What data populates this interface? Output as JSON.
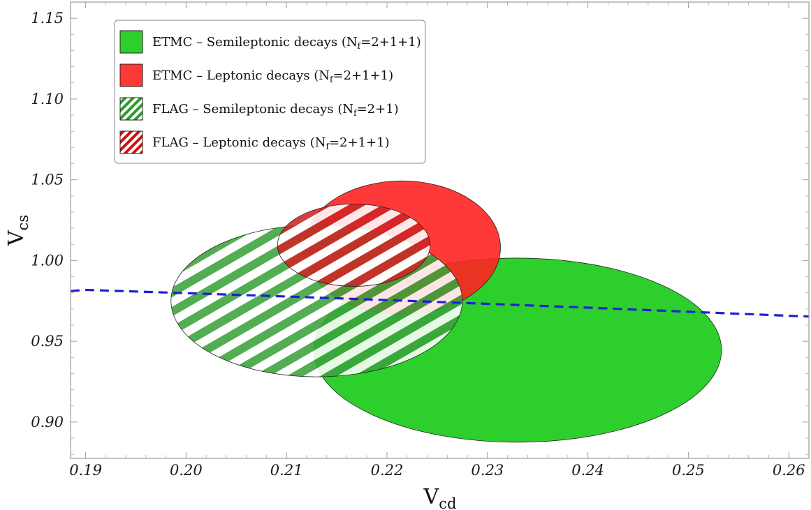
{
  "chart_data": {
    "type": "scatter",
    "xlabel": {
      "main": "V",
      "sub": "cd"
    },
    "ylabel": {
      "main": "V",
      "sub": "cs"
    },
    "xlim": [
      0.1885,
      0.262
    ],
    "ylim": [
      0.8775,
      1.16
    ],
    "xticks": [
      "0.19",
      "0.20",
      "0.21",
      "0.22",
      "0.23",
      "0.24",
      "0.25",
      "0.26"
    ],
    "yticks": [
      "0.90",
      "0.95",
      "1.00",
      "1.05",
      "1.10",
      "1.15"
    ],
    "grid": false,
    "legend_position": "top-left",
    "colors": {
      "green": "#22cc22",
      "red": "#ff2222",
      "green_hatch": "#2a9a2a",
      "red_hatch": "#cc1111",
      "unitarity_line": "#1f1fd6"
    },
    "ellipses": [
      {
        "name": "ETMC – Semileptonic decays (N_f=2+1+1)",
        "legend_main": "ETMC – Semileptonic decays (N",
        "legend_sub": "f",
        "legend_tail": "=2+1+1)",
        "style": "solid",
        "color": "green",
        "center": [
          0.233,
          0.9445
        ],
        "x_half_width": 0.0203,
        "y_half_height": 0.057
      },
      {
        "name": "ETMC – Leptonic decays (N_f=2+1+1)",
        "legend_main": "ETMC – Leptonic decays (N",
        "legend_sub": "f",
        "legend_tail": "=2+1+1)",
        "style": "solid",
        "color": "red",
        "center": [
          0.2215,
          1.008
        ],
        "x_half_width": 0.0098,
        "y_half_height": 0.0413
      },
      {
        "name": "FLAG – Semileptonic decays (N_f=2+1)",
        "legend_main": "FLAG – Semileptonic decays (N",
        "legend_sub": "f",
        "legend_tail": "=2+1)",
        "style": "hatched",
        "color": "green_hatch",
        "center": [
          0.213,
          0.975
        ],
        "x_half_width": 0.0145,
        "y_half_height": 0.047
      },
      {
        "name": "FLAG – Leptonic decays (N_f=2+1+1)",
        "legend_main": "FLAG – Leptonic decays (N",
        "legend_sub": "f",
        "legend_tail": "=2+1+1)",
        "style": "hatched",
        "color": "red_hatch",
        "center": [
          0.2167,
          1.0095
        ],
        "x_half_width": 0.0076,
        "y_half_height": 0.0255
      }
    ],
    "unitarity_curve": {
      "style": "dashed",
      "color": "unitarity_line",
      "x": [
        0.1885,
        0.19,
        0.2,
        0.21,
        0.22,
        0.23,
        0.24,
        0.25,
        0.26,
        0.262
      ],
      "y": [
        0.9811,
        0.9818,
        0.9798,
        0.9777,
        0.9755,
        0.9732,
        0.9708,
        0.9683,
        0.9658,
        0.9653
      ]
    }
  }
}
